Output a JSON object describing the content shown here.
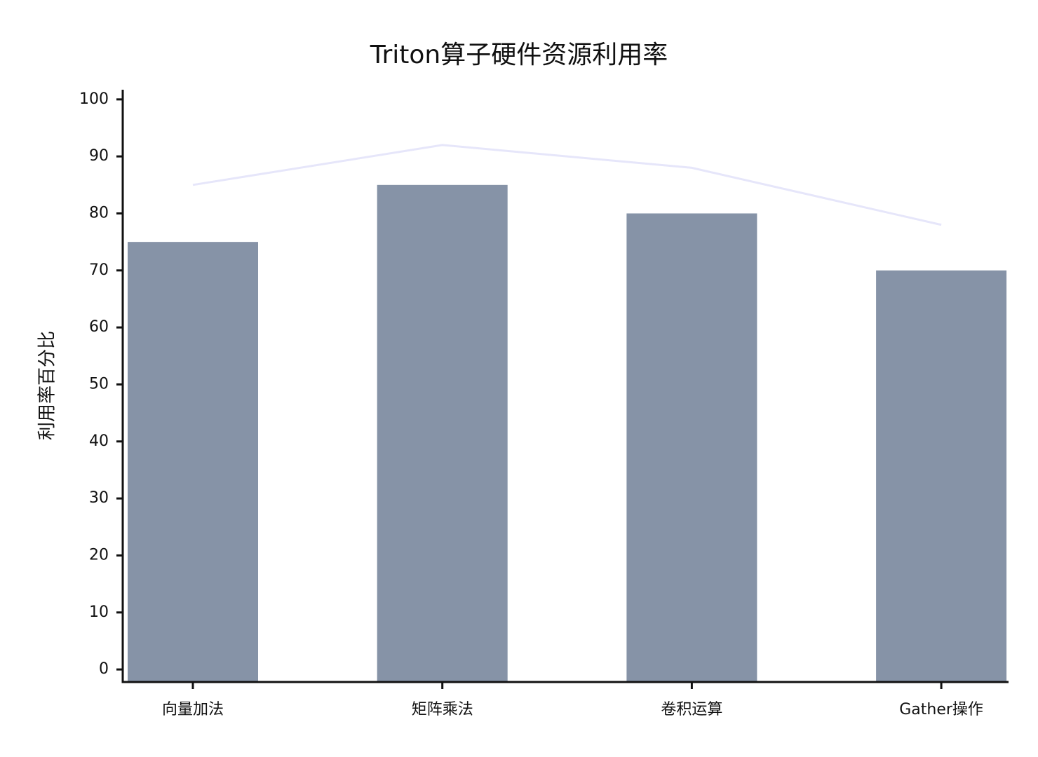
{
  "chart_data": {
    "type": "bar",
    "title": "Triton算子硬件资源利用率",
    "y_label": "利用率百分比",
    "categories": [
      "向量加法",
      "矩阵乘法",
      "卷积运算",
      "Gather操作"
    ],
    "series": [
      {
        "type": "bar",
        "color": "#8693a7",
        "values": [
          75,
          85,
          80,
          70
        ]
      },
      {
        "type": "line",
        "color": "#e6e6fa",
        "values": [
          85,
          92,
          88,
          78
        ]
      }
    ],
    "ylim": [
      -2.2,
      101.7
    ],
    "yticks": [
      0,
      10,
      20,
      30,
      40,
      50,
      60,
      70,
      80,
      90,
      100
    ],
    "grid": false
  }
}
